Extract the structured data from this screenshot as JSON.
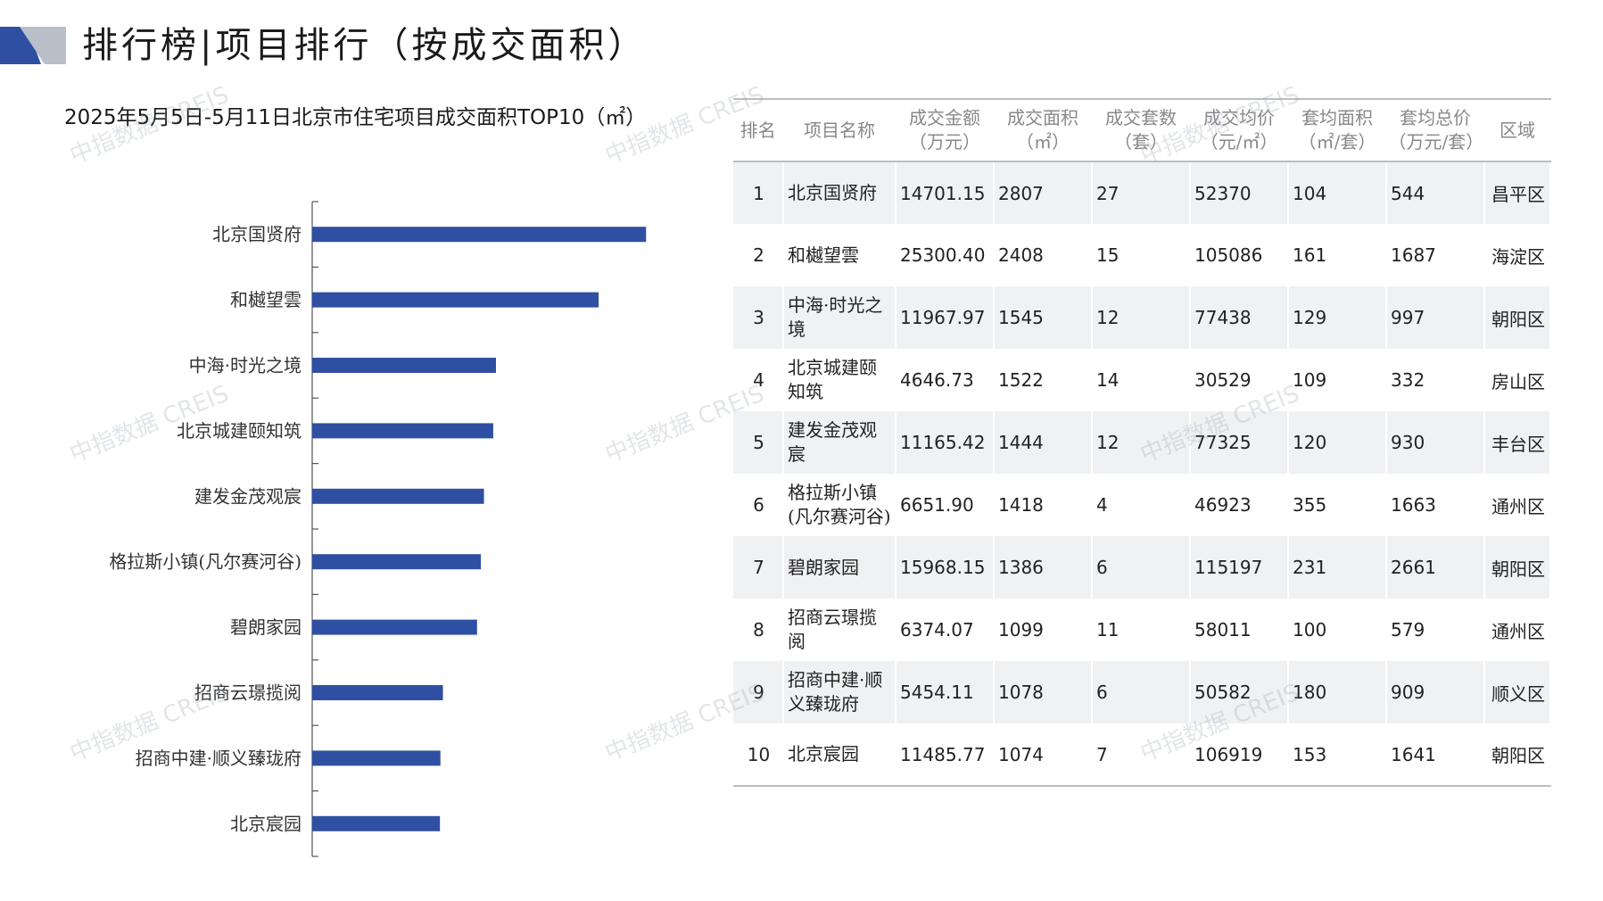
{
  "header": {
    "title": "排行榜|项目排行（按成交面积）",
    "logo_colors": [
      "#2f4fa2",
      "#b9bfc8"
    ]
  },
  "chart_title": "2025年5月5日-5月11日北京市住宅项目成交面积TOP10（㎡）",
  "chart_data": {
    "type": "bar",
    "orientation": "horizontal",
    "title": "2025年5月5日-5月11日北京市住宅项目成交面积TOP10（㎡）",
    "categories": [
      "北京国贤府",
      "和樾望雲",
      "中海·时光之境",
      "北京城建颐知筑",
      "建发金茂观宸",
      "格拉斯小镇(凡尔赛河谷)",
      "碧朗家园",
      "招商云璟揽阅",
      "招商中建·顺义臻珑府",
      "北京宸园"
    ],
    "values": [
      2807,
      2408,
      1545,
      1522,
      1444,
      1418,
      1386,
      1099,
      1078,
      1074
    ],
    "bar_color": "#2f4fa2",
    "xlim": [
      0,
      3000
    ],
    "gridlines": false
  },
  "table": {
    "columns": [
      {
        "l1": "排名",
        "l2": ""
      },
      {
        "l1": "项目名称",
        "l2": ""
      },
      {
        "l1": "成交金额",
        "l2": "（万元）"
      },
      {
        "l1": "成交面积",
        "l2": "（㎡）"
      },
      {
        "l1": "成交套数",
        "l2": "（套）"
      },
      {
        "l1": "成交均价",
        "l2": "（元/㎡）"
      },
      {
        "l1": "套均面积",
        "l2": "（㎡/套）"
      },
      {
        "l1": "套均总价",
        "l2": "（万元/套）"
      },
      {
        "l1": "区域",
        "l2": ""
      }
    ],
    "rows": [
      [
        "1",
        "北京国贤府",
        "14701.15",
        "2807",
        "27",
        "52370",
        "104",
        "544",
        "昌平区"
      ],
      [
        "2",
        "和樾望雲",
        "25300.40",
        "2408",
        "15",
        "105086",
        "161",
        "1687",
        "海淀区"
      ],
      [
        "3",
        "中海·时光之境",
        "11967.97",
        "1545",
        "12",
        "77438",
        "129",
        "997",
        "朝阳区"
      ],
      [
        "4",
        "北京城建颐知筑",
        "4646.73",
        "1522",
        "14",
        "30529",
        "109",
        "332",
        "房山区"
      ],
      [
        "5",
        "建发金茂观宸",
        "11165.42",
        "1444",
        "12",
        "77325",
        "120",
        "930",
        "丰台区"
      ],
      [
        "6",
        "格拉斯小镇(凡尔赛河谷)",
        "6651.90",
        "1418",
        "4",
        "46923",
        "355",
        "1663",
        "通州区"
      ],
      [
        "7",
        "碧朗家园",
        "15968.15",
        "1386",
        "6",
        "115197",
        "231",
        "2661",
        "朝阳区"
      ],
      [
        "8",
        "招商云璟揽阅",
        "6374.07",
        "1099",
        "11",
        "58011",
        "100",
        "579",
        "通州区"
      ],
      [
        "9",
        "招商中建·顺义臻珑府",
        "5454.11",
        "1078",
        "6",
        "50582",
        "180",
        "909",
        "顺义区"
      ],
      [
        "10",
        "北京宸园",
        "11485.77",
        "1074",
        "7",
        "106919",
        "153",
        "1641",
        "朝阳区"
      ]
    ]
  },
  "watermark": "中指数据 CREIS"
}
